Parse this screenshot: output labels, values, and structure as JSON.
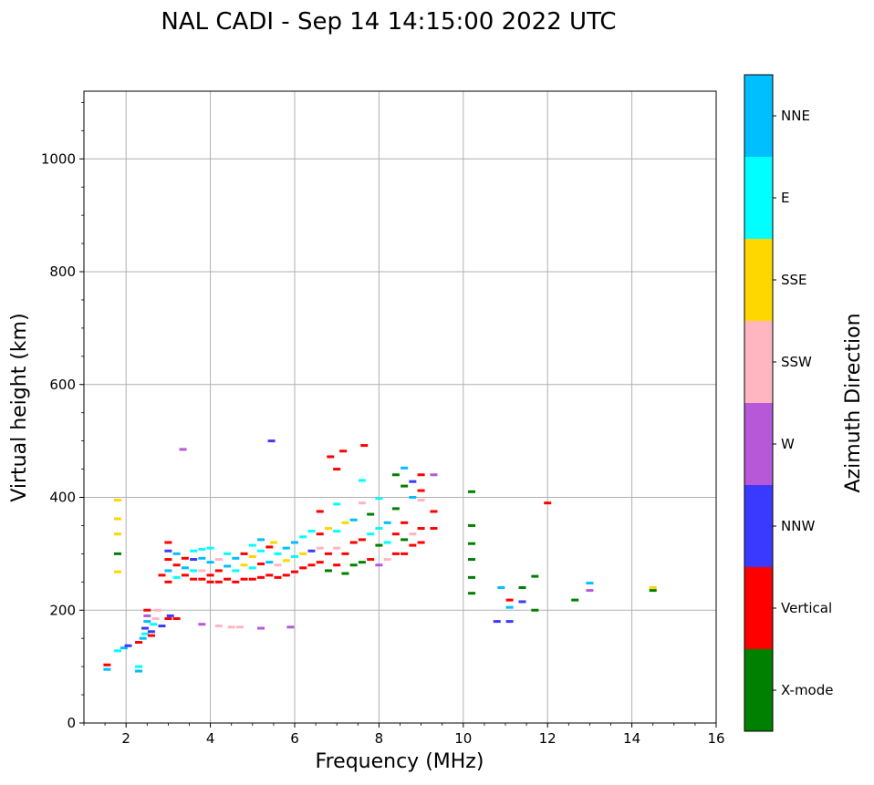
{
  "chart_data": {
    "type": "scatter",
    "title": "NAL CADI - Sep 14 14:15:00 2022 UTC",
    "xlabel": "Frequency (MHz)",
    "ylabel": "Virtual height (km)",
    "xlim": [
      1,
      16
    ],
    "ylim": [
      0,
      1120
    ],
    "xticks": [
      2,
      4,
      6,
      8,
      10,
      12,
      14,
      16
    ],
    "yticks": [
      0,
      200,
      400,
      600,
      800,
      1000
    ],
    "xminor_step": 0.5,
    "yminor_step": 50,
    "grid": true,
    "colorbar": {
      "label": "Azimuth Direction",
      "categories": [
        "X-mode",
        "Vertical",
        "NNW",
        "W",
        "SSW",
        "SSE",
        "E",
        "NNE"
      ],
      "colors": {
        "X-mode": "#008000",
        "Vertical": "#ff0000",
        "NNW": "#3a3aff",
        "W": "#b658d8",
        "SSW": "#ffb6c1",
        "SSE": "#ffd700",
        "E": "#00ffff",
        "NNE": "#00bfff"
      }
    },
    "echoes": [
      {
        "f": 1.55,
        "h": 95,
        "dir": "NNE"
      },
      {
        "f": 1.55,
        "h": 103,
        "dir": "Vertical"
      },
      {
        "f": 1.8,
        "h": 128,
        "dir": "E"
      },
      {
        "f": 1.8,
        "h": 268,
        "dir": "SSE"
      },
      {
        "f": 1.8,
        "h": 300,
        "dir": "X-mode"
      },
      {
        "f": 1.8,
        "h": 335,
        "dir": "SSE"
      },
      {
        "f": 1.8,
        "h": 362,
        "dir": "SSE"
      },
      {
        "f": 1.8,
        "h": 395,
        "dir": "SSE"
      },
      {
        "f": 1.95,
        "h": 133,
        "dir": "NNE"
      },
      {
        "f": 2.05,
        "h": 137,
        "dir": "NNW"
      },
      {
        "f": 2.3,
        "h": 92,
        "dir": "NNE"
      },
      {
        "f": 2.3,
        "h": 100,
        "dir": "E"
      },
      {
        "f": 2.3,
        "h": 143,
        "dir": "Vertical"
      },
      {
        "f": 2.4,
        "h": 150,
        "dir": "NNE"
      },
      {
        "f": 2.45,
        "h": 158,
        "dir": "E"
      },
      {
        "f": 2.45,
        "h": 168,
        "dir": "NNW"
      },
      {
        "f": 2.5,
        "h": 180,
        "dir": "NNE"
      },
      {
        "f": 2.5,
        "h": 190,
        "dir": "W"
      },
      {
        "f": 2.5,
        "h": 200,
        "dir": "Vertical"
      },
      {
        "f": 2.6,
        "h": 155,
        "dir": "Vertical"
      },
      {
        "f": 2.6,
        "h": 162,
        "dir": "NNW"
      },
      {
        "f": 2.65,
        "h": 175,
        "dir": "E"
      },
      {
        "f": 2.7,
        "h": 185,
        "dir": "SSW"
      },
      {
        "f": 2.75,
        "h": 200,
        "dir": "SSW"
      },
      {
        "f": 2.85,
        "h": 172,
        "dir": "NNW"
      },
      {
        "f": 2.85,
        "h": 262,
        "dir": "Vertical"
      },
      {
        "f": 3.0,
        "h": 185,
        "dir": "Vertical"
      },
      {
        "f": 3.05,
        "h": 190,
        "dir": "NNW"
      },
      {
        "f": 3.2,
        "h": 185,
        "dir": "Vertical"
      },
      {
        "f": 3.0,
        "h": 250,
        "dir": "Vertical"
      },
      {
        "f": 3.0,
        "h": 270,
        "dir": "NNE"
      },
      {
        "f": 3.0,
        "h": 290,
        "dir": "Vertical"
      },
      {
        "f": 3.0,
        "h": 305,
        "dir": "NNW"
      },
      {
        "f": 3.0,
        "h": 320,
        "dir": "Vertical"
      },
      {
        "f": 3.2,
        "h": 258,
        "dir": "E"
      },
      {
        "f": 3.2,
        "h": 280,
        "dir": "Vertical"
      },
      {
        "f": 3.2,
        "h": 300,
        "dir": "NNE"
      },
      {
        "f": 3.35,
        "h": 485,
        "dir": "W"
      },
      {
        "f": 3.4,
        "h": 262,
        "dir": "Vertical"
      },
      {
        "f": 3.4,
        "h": 275,
        "dir": "NNE"
      },
      {
        "f": 3.4,
        "h": 292,
        "dir": "Vertical"
      },
      {
        "f": 3.6,
        "h": 255,
        "dir": "Vertical"
      },
      {
        "f": 3.6,
        "h": 270,
        "dir": "E"
      },
      {
        "f": 3.6,
        "h": 290,
        "dir": "NNW"
      },
      {
        "f": 3.6,
        "h": 305,
        "dir": "E"
      },
      {
        "f": 3.8,
        "h": 255,
        "dir": "Vertical"
      },
      {
        "f": 3.8,
        "h": 270,
        "dir": "SSW"
      },
      {
        "f": 3.8,
        "h": 292,
        "dir": "NNE"
      },
      {
        "f": 3.8,
        "h": 308,
        "dir": "E"
      },
      {
        "f": 3.8,
        "h": 175,
        "dir": "W"
      },
      {
        "f": 4.0,
        "h": 250,
        "dir": "Vertical"
      },
      {
        "f": 4.0,
        "h": 262,
        "dir": "Vertical"
      },
      {
        "f": 4.0,
        "h": 285,
        "dir": "NNE"
      },
      {
        "f": 4.0,
        "h": 310,
        "dir": "E"
      },
      {
        "f": 4.2,
        "h": 172,
        "dir": "SSW"
      },
      {
        "f": 4.2,
        "h": 250,
        "dir": "Vertical"
      },
      {
        "f": 4.2,
        "h": 270,
        "dir": "Vertical"
      },
      {
        "f": 4.2,
        "h": 290,
        "dir": "SSW"
      },
      {
        "f": 4.4,
        "h": 255,
        "dir": "Vertical"
      },
      {
        "f": 4.4,
        "h": 278,
        "dir": "NNE"
      },
      {
        "f": 4.4,
        "h": 300,
        "dir": "E"
      },
      {
        "f": 4.5,
        "h": 170,
        "dir": "SSW"
      },
      {
        "f": 4.6,
        "h": 250,
        "dir": "Vertical"
      },
      {
        "f": 4.6,
        "h": 270,
        "dir": "E"
      },
      {
        "f": 4.6,
        "h": 292,
        "dir": "NNE"
      },
      {
        "f": 4.7,
        "h": 170,
        "dir": "SSW"
      },
      {
        "f": 4.8,
        "h": 255,
        "dir": "Vertical"
      },
      {
        "f": 4.8,
        "h": 280,
        "dir": "SSE"
      },
      {
        "f": 4.8,
        "h": 300,
        "dir": "Vertical"
      },
      {
        "f": 5.0,
        "h": 255,
        "dir": "Vertical"
      },
      {
        "f": 5.0,
        "h": 275,
        "dir": "E"
      },
      {
        "f": 5.0,
        "h": 295,
        "dir": "SSE"
      },
      {
        "f": 5.0,
        "h": 315,
        "dir": "E"
      },
      {
        "f": 5.2,
        "h": 168,
        "dir": "W"
      },
      {
        "f": 5.2,
        "h": 258,
        "dir": "Vertical"
      },
      {
        "f": 5.2,
        "h": 282,
        "dir": "Vertical"
      },
      {
        "f": 5.2,
        "h": 305,
        "dir": "E"
      },
      {
        "f": 5.2,
        "h": 325,
        "dir": "NNE"
      },
      {
        "f": 5.4,
        "h": 262,
        "dir": "Vertical"
      },
      {
        "f": 5.4,
        "h": 285,
        "dir": "NNE"
      },
      {
        "f": 5.4,
        "h": 312,
        "dir": "Vertical"
      },
      {
        "f": 5.45,
        "h": 500,
        "dir": "NNW"
      },
      {
        "f": 5.5,
        "h": 320,
        "dir": "SSE"
      },
      {
        "f": 5.6,
        "h": 258,
        "dir": "Vertical"
      },
      {
        "f": 5.6,
        "h": 280,
        "dir": "SSW"
      },
      {
        "f": 5.6,
        "h": 300,
        "dir": "E"
      },
      {
        "f": 5.8,
        "h": 262,
        "dir": "Vertical"
      },
      {
        "f": 5.8,
        "h": 288,
        "dir": "SSE"
      },
      {
        "f": 5.8,
        "h": 310,
        "dir": "NNE"
      },
      {
        "f": 5.9,
        "h": 170,
        "dir": "W"
      },
      {
        "f": 6.0,
        "h": 268,
        "dir": "Vertical"
      },
      {
        "f": 6.0,
        "h": 295,
        "dir": "E"
      },
      {
        "f": 6.0,
        "h": 320,
        "dir": "NNE"
      },
      {
        "f": 6.2,
        "h": 275,
        "dir": "Vertical"
      },
      {
        "f": 6.2,
        "h": 300,
        "dir": "SSE"
      },
      {
        "f": 6.2,
        "h": 330,
        "dir": "E"
      },
      {
        "f": 6.4,
        "h": 280,
        "dir": "Vertical"
      },
      {
        "f": 6.4,
        "h": 305,
        "dir": "NNW"
      },
      {
        "f": 6.4,
        "h": 340,
        "dir": "E"
      },
      {
        "f": 6.6,
        "h": 285,
        "dir": "Vertical"
      },
      {
        "f": 6.6,
        "h": 310,
        "dir": "SSW"
      },
      {
        "f": 6.6,
        "h": 335,
        "dir": "Vertical"
      },
      {
        "f": 6.6,
        "h": 375,
        "dir": "Vertical"
      },
      {
        "f": 6.8,
        "h": 270,
        "dir": "X-mode"
      },
      {
        "f": 6.8,
        "h": 300,
        "dir": "Vertical"
      },
      {
        "f": 6.8,
        "h": 345,
        "dir": "SSE"
      },
      {
        "f": 6.85,
        "h": 472,
        "dir": "Vertical"
      },
      {
        "f": 7.0,
        "h": 280,
        "dir": "Vertical"
      },
      {
        "f": 7.0,
        "h": 310,
        "dir": "SSW"
      },
      {
        "f": 7.0,
        "h": 340,
        "dir": "E"
      },
      {
        "f": 7.0,
        "h": 388,
        "dir": "E"
      },
      {
        "f": 7.0,
        "h": 450,
        "dir": "Vertical"
      },
      {
        "f": 7.15,
        "h": 482,
        "dir": "Vertical"
      },
      {
        "f": 7.2,
        "h": 265,
        "dir": "X-mode"
      },
      {
        "f": 7.2,
        "h": 300,
        "dir": "Vertical"
      },
      {
        "f": 7.2,
        "h": 355,
        "dir": "SSE"
      },
      {
        "f": 7.4,
        "h": 280,
        "dir": "X-mode"
      },
      {
        "f": 7.4,
        "h": 320,
        "dir": "Vertical"
      },
      {
        "f": 7.4,
        "h": 360,
        "dir": "NNE"
      },
      {
        "f": 7.6,
        "h": 285,
        "dir": "X-mode"
      },
      {
        "f": 7.6,
        "h": 325,
        "dir": "Vertical"
      },
      {
        "f": 7.6,
        "h": 390,
        "dir": "SSW"
      },
      {
        "f": 7.6,
        "h": 430,
        "dir": "E"
      },
      {
        "f": 7.65,
        "h": 492,
        "dir": "Vertical"
      },
      {
        "f": 7.8,
        "h": 290,
        "dir": "Vertical"
      },
      {
        "f": 7.8,
        "h": 335,
        "dir": "E"
      },
      {
        "f": 7.8,
        "h": 370,
        "dir": "X-mode"
      },
      {
        "f": 8.0,
        "h": 280,
        "dir": "W"
      },
      {
        "f": 8.0,
        "h": 315,
        "dir": "X-mode"
      },
      {
        "f": 8.0,
        "h": 345,
        "dir": "E"
      },
      {
        "f": 8.0,
        "h": 398,
        "dir": "E"
      },
      {
        "f": 8.2,
        "h": 290,
        "dir": "SSW"
      },
      {
        "f": 8.2,
        "h": 320,
        "dir": "E"
      },
      {
        "f": 8.2,
        "h": 355,
        "dir": "NNE"
      },
      {
        "f": 8.4,
        "h": 300,
        "dir": "Vertical"
      },
      {
        "f": 8.4,
        "h": 335,
        "dir": "Vertical"
      },
      {
        "f": 8.4,
        "h": 380,
        "dir": "X-mode"
      },
      {
        "f": 8.4,
        "h": 440,
        "dir": "X-mode"
      },
      {
        "f": 8.6,
        "h": 300,
        "dir": "Vertical"
      },
      {
        "f": 8.6,
        "h": 325,
        "dir": "X-mode"
      },
      {
        "f": 8.6,
        "h": 355,
        "dir": "Vertical"
      },
      {
        "f": 8.6,
        "h": 420,
        "dir": "X-mode"
      },
      {
        "f": 8.6,
        "h": 452,
        "dir": "NNE"
      },
      {
        "f": 8.8,
        "h": 315,
        "dir": "Vertical"
      },
      {
        "f": 8.8,
        "h": 335,
        "dir": "SSW"
      },
      {
        "f": 8.8,
        "h": 400,
        "dir": "NNE"
      },
      {
        "f": 8.8,
        "h": 428,
        "dir": "NNW"
      },
      {
        "f": 9.0,
        "h": 320,
        "dir": "Vertical"
      },
      {
        "f": 9.0,
        "h": 345,
        "dir": "Vertical"
      },
      {
        "f": 9.0,
        "h": 395,
        "dir": "SSW"
      },
      {
        "f": 9.0,
        "h": 412,
        "dir": "Vertical"
      },
      {
        "f": 9.0,
        "h": 440,
        "dir": "Vertical"
      },
      {
        "f": 9.3,
        "h": 345,
        "dir": "Vertical"
      },
      {
        "f": 9.3,
        "h": 375,
        "dir": "Vertical"
      },
      {
        "f": 9.3,
        "h": 440,
        "dir": "W"
      },
      {
        "f": 10.2,
        "h": 230,
        "dir": "X-mode"
      },
      {
        "f": 10.2,
        "h": 258,
        "dir": "X-mode"
      },
      {
        "f": 10.2,
        "h": 290,
        "dir": "X-mode"
      },
      {
        "f": 10.2,
        "h": 318,
        "dir": "X-mode"
      },
      {
        "f": 10.2,
        "h": 350,
        "dir": "X-mode"
      },
      {
        "f": 10.2,
        "h": 410,
        "dir": "X-mode"
      },
      {
        "f": 10.8,
        "h": 180,
        "dir": "NNW"
      },
      {
        "f": 10.9,
        "h": 240,
        "dir": "NNE"
      },
      {
        "f": 11.1,
        "h": 180,
        "dir": "NNW"
      },
      {
        "f": 11.1,
        "h": 205,
        "dir": "NNE"
      },
      {
        "f": 11.1,
        "h": 218,
        "dir": "Vertical"
      },
      {
        "f": 11.4,
        "h": 215,
        "dir": "NNW"
      },
      {
        "f": 11.4,
        "h": 240,
        "dir": "X-mode"
      },
      {
        "f": 11.7,
        "h": 200,
        "dir": "X-mode"
      },
      {
        "f": 11.7,
        "h": 260,
        "dir": "X-mode"
      },
      {
        "f": 12.0,
        "h": 390,
        "dir": "Vertical"
      },
      {
        "f": 12.65,
        "h": 218,
        "dir": "X-mode"
      },
      {
        "f": 13.0,
        "h": 235,
        "dir": "W"
      },
      {
        "f": 13.0,
        "h": 248,
        "dir": "NNE"
      },
      {
        "f": 14.5,
        "h": 235,
        "dir": "X-mode"
      },
      {
        "f": 14.5,
        "h": 240,
        "dir": "SSE"
      }
    ]
  }
}
